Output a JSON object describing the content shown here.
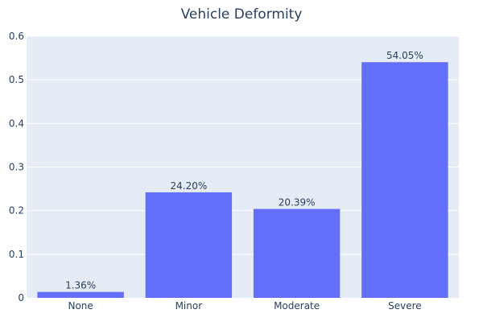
{
  "chart_data": {
    "type": "bar",
    "title": "Vehicle Deformity",
    "categories": [
      "None",
      "Minor",
      "Moderate",
      "Severe"
    ],
    "values": [
      0.0136,
      0.242,
      0.2039,
      0.5405
    ],
    "data_labels": [
      "1.36%",
      "24.20%",
      "20.39%",
      "54.05%"
    ],
    "xlabel": "",
    "ylabel": "",
    "ylim": [
      0,
      0.6
    ],
    "yticks": [
      0,
      0.1,
      0.2,
      0.3,
      0.4,
      0.5,
      0.6
    ],
    "ytick_labels": [
      "0",
      "0.1",
      "0.2",
      "0.3",
      "0.4",
      "0.5",
      "0.6"
    ],
    "grid": true,
    "legend": "none",
    "bar_color": "#636efa",
    "plot_bg": "#e5ecf6",
    "grid_color": "#ffffff",
    "text_color": "#2a3f5f"
  }
}
